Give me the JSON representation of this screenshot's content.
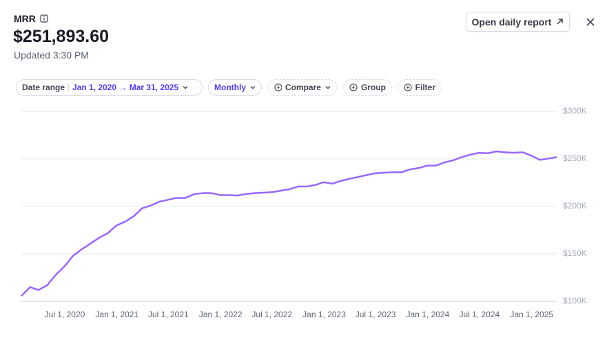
{
  "header": {
    "title": "MRR",
    "value": "$251,893.60",
    "updated": "Updated 3:30 PM"
  },
  "actions": {
    "open_report": "Open daily report"
  },
  "filters": {
    "date_range_label": "Date range",
    "date_range": "Jan 1, 2020 → Mar 31, 2025",
    "interval": "Monthly",
    "compare": "Compare",
    "group": "Group",
    "filter": "Filter"
  },
  "chart_data": {
    "type": "line",
    "color": "#9966ff",
    "x": [
      "2020-01-01",
      "2020-02-01",
      "2020-03-01",
      "2020-04-01",
      "2020-05-01",
      "2020-06-01",
      "2020-07-01",
      "2020-08-01",
      "2020-09-01",
      "2020-10-01",
      "2020-11-01",
      "2020-12-01",
      "2021-01-01",
      "2021-02-01",
      "2021-03-01",
      "2021-04-01",
      "2021-05-01",
      "2021-06-01",
      "2021-07-01",
      "2021-08-01",
      "2021-09-01",
      "2021-10-01",
      "2021-11-01",
      "2021-12-01",
      "2022-01-01",
      "2022-02-01",
      "2022-03-01",
      "2022-04-01",
      "2022-05-01",
      "2022-06-01",
      "2022-07-01",
      "2022-08-01",
      "2022-09-01",
      "2022-10-01",
      "2022-11-01",
      "2022-12-01",
      "2023-01-01",
      "2023-02-01",
      "2023-03-01",
      "2023-04-01",
      "2023-05-01",
      "2023-06-01",
      "2023-07-01",
      "2023-08-01",
      "2023-09-01",
      "2023-10-01",
      "2023-11-01",
      "2023-12-01",
      "2024-01-01",
      "2024-02-01",
      "2024-03-01",
      "2024-04-01",
      "2024-05-01",
      "2024-06-01",
      "2024-07-01",
      "2024-08-01",
      "2024-09-01",
      "2024-10-01",
      "2024-11-01",
      "2024-12-01",
      "2025-01-01",
      "2025-02-01",
      "2025-03-01"
    ],
    "values": [
      105800,
      115000,
      112000,
      117000,
      128000,
      137000,
      148000,
      155000,
      161000,
      167000,
      172000,
      180000,
      184000,
      190000,
      198000,
      201000,
      205000,
      207000,
      209000,
      209000,
      213000,
      214000,
      214000,
      212000,
      212000,
      211500,
      213000,
      214000,
      214500,
      215000,
      216500,
      218000,
      221000,
      221000,
      222500,
      225500,
      224000,
      227000,
      229000,
      231000,
      233000,
      235000,
      235500,
      236000,
      236000,
      239000,
      240500,
      243000,
      243000,
      246500,
      248500,
      252000,
      254500,
      256500,
      256000,
      258000,
      257000,
      256500,
      257000,
      253500,
      249000,
      250500,
      251893.6
    ],
    "xticks": [
      {
        "value": "2020-07-01",
        "label": "Jul 1, 2020"
      },
      {
        "value": "2021-01-01",
        "label": "Jan 1, 2021"
      },
      {
        "value": "2021-07-01",
        "label": "Jul 1, 2021"
      },
      {
        "value": "2022-01-01",
        "label": "Jan 1, 2022"
      },
      {
        "value": "2022-07-01",
        "label": "Jul 1, 2022"
      },
      {
        "value": "2023-01-01",
        "label": "Jan 1, 2023"
      },
      {
        "value": "2023-07-01",
        "label": "Jul 1, 2023"
      },
      {
        "value": "2024-01-01",
        "label": "Jan 1, 2024"
      },
      {
        "value": "2024-07-01",
        "label": "Jul 1, 2024"
      },
      {
        "value": "2025-01-01",
        "label": "Jan 1, 2025"
      }
    ],
    "ylim": [
      100000,
      300000
    ],
    "yticks": [
      {
        "value": 100000,
        "label": "$100K"
      },
      {
        "value": 150000,
        "label": "$150K"
      },
      {
        "value": 200000,
        "label": "$200K"
      },
      {
        "value": 250000,
        "label": "$250K"
      },
      {
        "value": 300000,
        "label": "$300K"
      }
    ],
    "grid": true
  }
}
